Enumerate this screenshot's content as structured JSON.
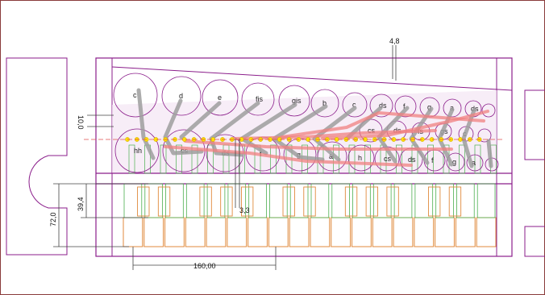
{
  "dimensions": {
    "top_offset": "4,8",
    "left_spacing": "10,0",
    "mid_offset": "3,3",
    "key_depth_outer": "72,0",
    "key_depth_inner": "39,4",
    "bottom_width": "160,00"
  },
  "pipes_back_row": [
    "c",
    "d",
    "e",
    "fis",
    "gis",
    "b",
    "c",
    "ds",
    "f",
    "g",
    "a",
    "ds"
  ],
  "pipes_front_row": [
    "hh",
    "cs",
    "ds",
    "f",
    "g",
    "a",
    "h",
    "cs",
    "ds",
    "f",
    "g",
    "a"
  ],
  "pipes_middle_row": [
    "cs",
    "ds",
    "fs",
    "gs",
    "c"
  ],
  "tiny_labels": [
    "fis",
    "gis",
    "a",
    "h",
    "c"
  ],
  "colors": {
    "case_outline": "#8b1e8b",
    "key_white": "#e08a3c",
    "key_black": "#4caf50",
    "pipe_outline": "#8b1e8b",
    "rod_gray": "#9e9e9e",
    "rod_red": "#f08080",
    "marker_yellow": "#ffe000"
  }
}
